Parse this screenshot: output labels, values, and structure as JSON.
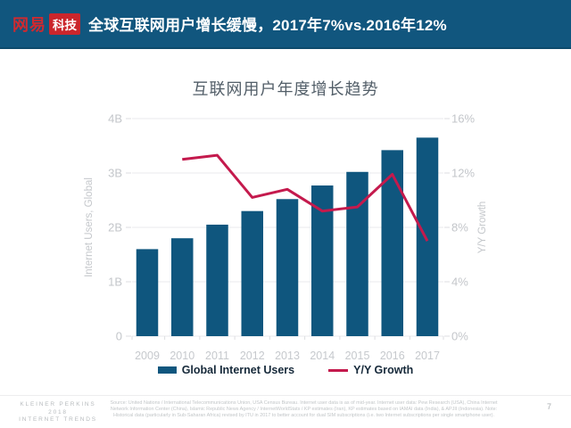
{
  "header": {
    "logo": {
      "brand": "网易",
      "sub": "科技"
    },
    "title": "全球互联网用户增长缓慢，2017年7%vs.2016年12%",
    "bg_color": "#11567E",
    "logo_red": "#CB262C"
  },
  "chart_data": {
    "type": "bar",
    "title": "互联网用户年度增长趋势",
    "categories": [
      "2009",
      "2010",
      "2011",
      "2012",
      "2013",
      "2014",
      "2015",
      "2016",
      "2017"
    ],
    "series": [
      {
        "name": "Global Internet Users",
        "type": "bar",
        "axis": "left",
        "unit": "B",
        "values": [
          1.6,
          1.8,
          2.05,
          2.3,
          2.52,
          2.77,
          3.02,
          3.42,
          3.65
        ],
        "color": "#0F567E"
      },
      {
        "name": "Y/Y Growth",
        "type": "line",
        "axis": "right",
        "unit": "%",
        "values": [
          null,
          13.0,
          13.3,
          10.2,
          10.8,
          9.2,
          9.5,
          11.9,
          7.0
        ],
        "color": "#C41A4D"
      }
    ],
    "left_axis": {
      "label": "Internet Users, Global",
      "ticks_top_to_bottom": [
        "4B",
        "3B",
        "2B",
        "1B",
        "0"
      ],
      "range": [
        0,
        4
      ]
    },
    "right_axis": {
      "label": "Y/Y Growth",
      "ticks_top_to_bottom": [
        "16%",
        "12%",
        "8%",
        "4%",
        "0%"
      ],
      "range": [
        0,
        16
      ]
    },
    "grid": true,
    "legend_position": "bottom"
  },
  "footer": {
    "brand_lines": [
      "KLEINER PERKINS",
      "2018",
      "INTERNET TRENDS"
    ],
    "source": "Source: United Nations / International Telecommunications Union, USA Census Bureau. Internet user data is as of mid-year. Internet user data: Pew Research (USA), China Internet Network Information Center (China), Islamic Republic News Agency / InternetWorldStats / KP estimates (Iran), KP estimates based on IAMAI data (India), & APJII (Indonesia). Note: Historical data (particularly in Sub-Saharan Africa) revised by ITU in 2017 to better account for dual SIM subscriptions (i.e. two Internet subscriptions per single smartphone user).",
    "page": "7"
  }
}
